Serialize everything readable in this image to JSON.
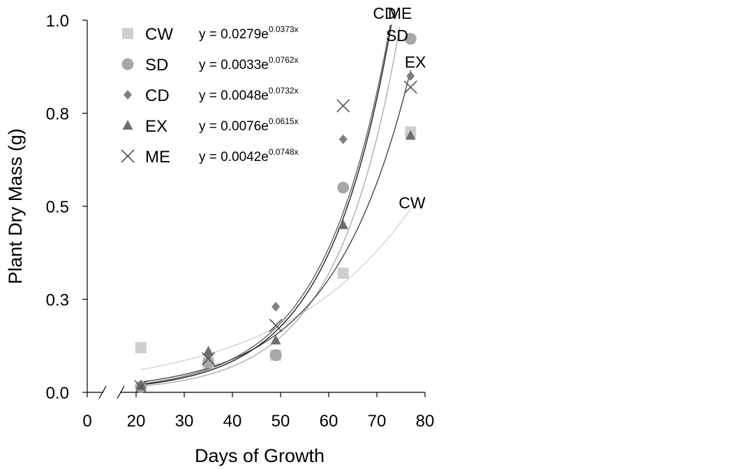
{
  "chart_data": {
    "type": "scatter",
    "xlabel": "Days of Growth",
    "ylabel": "Plant Dry Mass (g)",
    "xlim": [
      0,
      80
    ],
    "ylim": [
      0,
      1.0
    ],
    "x_axis_break": [
      0,
      20
    ],
    "x_ticks": [
      "0",
      "20",
      "30",
      "40",
      "50",
      "60",
      "70",
      "80"
    ],
    "y_ticks": [
      "0.0",
      "0.3",
      "0.5",
      "0.8",
      "1.0"
    ],
    "y_tick_values": [
      0,
      0.25,
      0.5,
      0.75,
      1.0
    ],
    "grid": false,
    "legend_position": "top-left",
    "x": [
      21,
      35,
      49,
      63,
      77
    ],
    "series": [
      {
        "name": "CW",
        "marker": "square",
        "color": "#cfcfcf",
        "curve_color": "#cfcfcf",
        "values": [
          0.12,
          0.08,
          0.1,
          0.32,
          0.7
        ],
        "equation": "y = 0.0279e",
        "equation_exponent": "0.0373x",
        "fit": {
          "a": 0.0279,
          "b": 0.0373
        }
      },
      {
        "name": "SD",
        "marker": "circle",
        "color": "#a8a8a8",
        "curve_color": "#a8a8a8",
        "values": [
          0.015,
          0.08,
          0.1,
          0.55,
          0.95
        ],
        "equation": "y = 0.0033e",
        "equation_exponent": "0.0762x",
        "fit": {
          "a": 0.0033,
          "b": 0.0762
        }
      },
      {
        "name": "CD",
        "marker": "diamond",
        "color": "#7f7f7f",
        "curve_color": "#5a5a5a",
        "values": [
          0.015,
          0.1,
          0.23,
          0.68,
          0.85
        ],
        "equation": "y = 0.0048e",
        "equation_exponent": "0.0732x",
        "fit": {
          "a": 0.0048,
          "b": 0.0732
        }
      },
      {
        "name": "EX",
        "marker": "triangle",
        "color": "#6e6e6e",
        "curve_color": "#3a3a3a",
        "values": [
          0.02,
          0.11,
          0.14,
          0.45,
          0.69
        ],
        "equation": "y = 0.0076e",
        "equation_exponent": "0.0615x",
        "fit": {
          "a": 0.0076,
          "b": 0.0615
        }
      },
      {
        "name": "ME",
        "marker": "cross",
        "color": "#555555",
        "curve_color": "#111111",
        "values": [
          0.015,
          0.09,
          0.18,
          0.77,
          0.82
        ],
        "equation": "y = 0.0042e",
        "equation_exponent": "0.0748x",
        "fit": {
          "a": 0.0042,
          "b": 0.0748
        }
      }
    ],
    "curve_labels": [
      "CD",
      "ME",
      "SD",
      "EX",
      "CW"
    ]
  }
}
